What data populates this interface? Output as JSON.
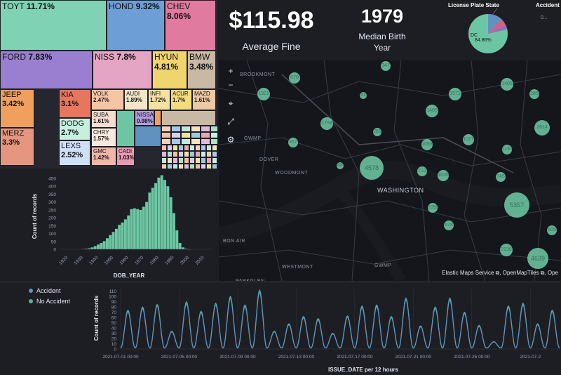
{
  "treemap": {
    "cells": [
      {
        "name": "TOYT",
        "pct": "11.71%",
        "color": "#7fd3b4"
      },
      {
        "name": "HOND",
        "pct": "9.32%",
        "color": "#6e9ed6"
      },
      {
        "name": "CHEV",
        "pct": "8.06%",
        "color": "#e07a9e"
      },
      {
        "name": "FORD",
        "pct": "7.83%",
        "color": "#9a7fd1"
      },
      {
        "name": "NISS",
        "pct": "7.8%",
        "color": "#e3a5c3"
      },
      {
        "name": "HYUN",
        "pct": "4.81%",
        "color": "#f0d46e"
      },
      {
        "name": "BMW",
        "pct": "3.48%",
        "color": "#c8b8a4"
      },
      {
        "name": "JEEP",
        "pct": "3.42%",
        "color": "#f0a05e"
      },
      {
        "name": "KIA",
        "pct": "3.1%",
        "color": "#e8765e"
      },
      {
        "name": "VOLK",
        "pct": "2.47%",
        "color": "#f5c5a4"
      },
      {
        "name": "AUDI",
        "pct": "1.89%",
        "color": "#f3e6c8"
      },
      {
        "name": "INFI",
        "pct": "1.72%",
        "color": "#f6e2a0"
      },
      {
        "name": "ACUR",
        "pct": "1.7%",
        "color": "#f4dc7c"
      },
      {
        "name": "MAZD",
        "pct": "1.61%",
        "color": "#eec8a2"
      },
      {
        "name": "MERZ",
        "pct": "3.3%",
        "color": "#e69580"
      },
      {
        "name": "DODG",
        "pct": "2.7%",
        "color": "#c6f0de"
      },
      {
        "name": "SUBA",
        "pct": "1.61%",
        "color": "#f4ddd0"
      },
      {
        "name": "LEXS",
        "pct": "2.52%",
        "color": "#cfe0f6"
      },
      {
        "name": "CHRY",
        "pct": "1.57%",
        "color": "#f5e9e0"
      },
      {
        "name": "NISSA",
        "pct": "0.98%",
        "color": "#b59de0"
      },
      {
        "name": "GMC",
        "pct": "1.42%",
        "color": "#f0b6a8"
      },
      {
        "name": "CADI",
        "pct": "1.03%",
        "color": "#e99ab2"
      }
    ]
  },
  "metrics": {
    "fine_value": "$115.98",
    "fine_label": "Average Fine",
    "birth_value": "1979",
    "birth_label": "Median Birth Year"
  },
  "pie": {
    "title": "License Plate State",
    "title2": "Accident",
    "center_label": "DC",
    "center_pct": "84.86%",
    "other_label": "0..."
  },
  "map": {
    "clusters": [
      "670",
      "347",
      "1321",
      "51",
      "1571",
      "1405",
      "285",
      "1400",
      "1758",
      "281",
      "1027",
      "1063",
      "2614",
      "357",
      "1167",
      "48",
      "4578",
      "713",
      "1035",
      "745",
      "5357",
      "1095",
      "678",
      "2136",
      "4639",
      "605"
    ],
    "places": [
      "BROOKMONT",
      "GWMP",
      "DOVER",
      "WOODMONT",
      "WASHINGTON",
      "BON AIR",
      "WESTMONT",
      "GWMP",
      "PARKGLEN"
    ],
    "attribution": "Elastic Maps Service  ⧉, OpenMapTiles  ⧉, Ope",
    "controls": {
      "zoom_in": "+",
      "zoom_out": "−",
      "locate": "⌖",
      "fit": "⤢",
      "tools": "⚙"
    }
  },
  "chart_data": [
    {
      "type": "bar",
      "title": "",
      "xlabel": "DOB_YEAR",
      "ylabel": "Count of records",
      "ylim": [
        0,
        450
      ],
      "yticks": [
        "450",
        "400",
        "350",
        "300",
        "250",
        "200",
        "150",
        "100",
        "50",
        "0"
      ],
      "xticks": [
        "1920",
        "1930",
        "1940",
        "1950",
        "1960",
        "1970",
        "1980",
        "1990",
        "2000",
        "2010"
      ],
      "color": "#6dc6a3",
      "categories": [
        1930,
        1932,
        1934,
        1936,
        1938,
        1940,
        1942,
        1944,
        1946,
        1948,
        1950,
        1952,
        1954,
        1956,
        1958,
        1960,
        1962,
        1964,
        1966,
        1968,
        1970,
        1972,
        1974,
        1976,
        1978,
        1980,
        1982,
        1984,
        1986,
        1988,
        1990,
        1992,
        1994,
        1996,
        1998,
        2000
      ],
      "values": [
        2,
        4,
        6,
        12,
        20,
        30,
        40,
        52,
        70,
        90,
        110,
        130,
        155,
        170,
        190,
        215,
        255,
        260,
        255,
        250,
        270,
        300,
        360,
        390,
        420,
        455,
        470,
        440,
        400,
        330,
        230,
        120,
        40,
        12,
        4,
        1
      ]
    },
    {
      "type": "line",
      "title": "",
      "xlabel": "ISSUE_DATE per 12 hours",
      "ylabel": "Count of records",
      "ylim": [
        0,
        115
      ],
      "yticks": [
        "110",
        "100",
        "90",
        "80",
        "70",
        "60",
        "50",
        "40",
        "30",
        "20",
        "10",
        "0"
      ],
      "xticks": [
        "2021-07-01 00:00",
        "2021-07-05 00:00",
        "2021-07-09 00:00",
        "2021-07-13 00:00",
        "2021-07-17 00:00",
        "2021-07-21 00:00",
        "2021-07-25 00:00",
        "2021-07-2"
      ],
      "series": [
        {
          "name": "Accident",
          "color": "#6092c0"
        },
        {
          "name": "No Accident",
          "color": "#54b399"
        }
      ],
      "x_days": [
        1,
        2,
        3,
        4,
        5,
        6,
        7,
        8,
        9,
        10,
        11,
        12,
        13,
        14,
        15,
        16,
        17,
        18,
        19,
        20,
        21,
        22,
        23,
        24,
        25,
        26,
        27,
        28,
        29,
        30
      ],
      "peaks": [
        72,
        78,
        83,
        32,
        88,
        70,
        85,
        98,
        82,
        110,
        32,
        46,
        60,
        56,
        28,
        61,
        80,
        82,
        60,
        95,
        42,
        78,
        95,
        68,
        43,
        12,
        80,
        85,
        46,
        72
      ]
    }
  ],
  "legend": {
    "items": [
      {
        "label": "Accident",
        "color": "#6092c0"
      },
      {
        "label": "No Accident",
        "color": "#54b399"
      }
    ]
  }
}
